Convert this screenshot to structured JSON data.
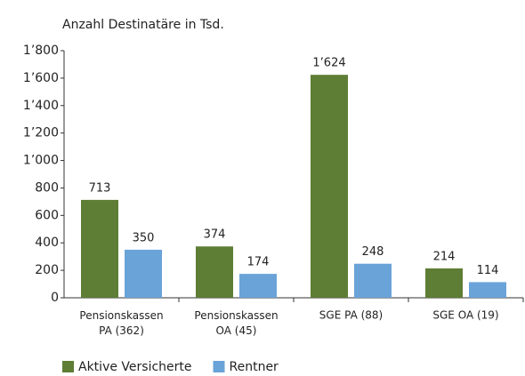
{
  "chart_data": {
    "type": "bar",
    "title": "Anzahl Destinatäre in Tsd.",
    "categories": [
      "Pensionskassen PA (362)",
      "Pensionskassen OA (45)",
      "SGE PA (88)",
      "SGE OA (19)"
    ],
    "series": [
      {
        "name": "Aktive Versicherte",
        "color": "#5e7d35",
        "values": [
          713,
          374,
          1624,
          214
        ],
        "value_labels": [
          "713",
          "374",
          "1’624",
          "214"
        ]
      },
      {
        "name": "Rentner",
        "color": "#6aa3d8",
        "values": [
          350,
          174,
          248,
          114
        ],
        "value_labels": [
          "350",
          "174",
          "248",
          "114"
        ]
      }
    ],
    "ylim": [
      0,
      1800
    ],
    "yticks": [
      0,
      200,
      400,
      600,
      800,
      {
        "value": 1000,
        "label": "1’000"
      },
      {
        "value": 1200,
        "label": "1’200"
      },
      {
        "value": 1400,
        "label": "1’400"
      },
      {
        "value": 1600,
        "label": "1’600"
      },
      {
        "value": 1800,
        "label": "1’800"
      }
    ],
    "legend": "bottom-left"
  }
}
